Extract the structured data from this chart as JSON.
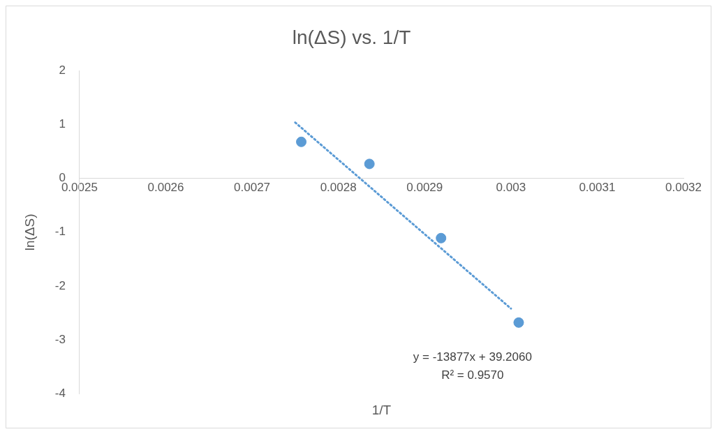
{
  "chart_data": {
    "type": "scatter",
    "title": "ln(ΔS) vs. 1/T",
    "xlabel": "1/T",
    "ylabel": "ln(ΔS)",
    "xlim": [
      0.0025,
      0.0032
    ],
    "xticks": [
      0.0025,
      0.0026,
      0.0027,
      0.0028,
      0.0029,
      0.003,
      0.0031,
      0.0032
    ],
    "ylim": [
      -4,
      2
    ],
    "yticks": [
      -4,
      -3,
      -2,
      -1,
      0,
      1,
      2
    ],
    "grid": false,
    "legend": false,
    "marker": "circle",
    "series": [
      {
        "type": "scatter",
        "color": "#5b9bd5",
        "x": [
          0.002757,
          0.002836,
          0.002919,
          0.003009
        ],
        "values": [
          0.68,
          0.27,
          -1.11,
          -2.68
        ]
      },
      {
        "type": "line",
        "color": "#5b9bd5",
        "line_style": "dotted",
        "marker": "none",
        "x": [
          0.00275,
          0.003
        ],
        "values": [
          1.04,
          -2.42
        ]
      }
    ],
    "annotations": [
      "y = -13877x + 39.2060",
      "R² = 0.9570"
    ]
  }
}
